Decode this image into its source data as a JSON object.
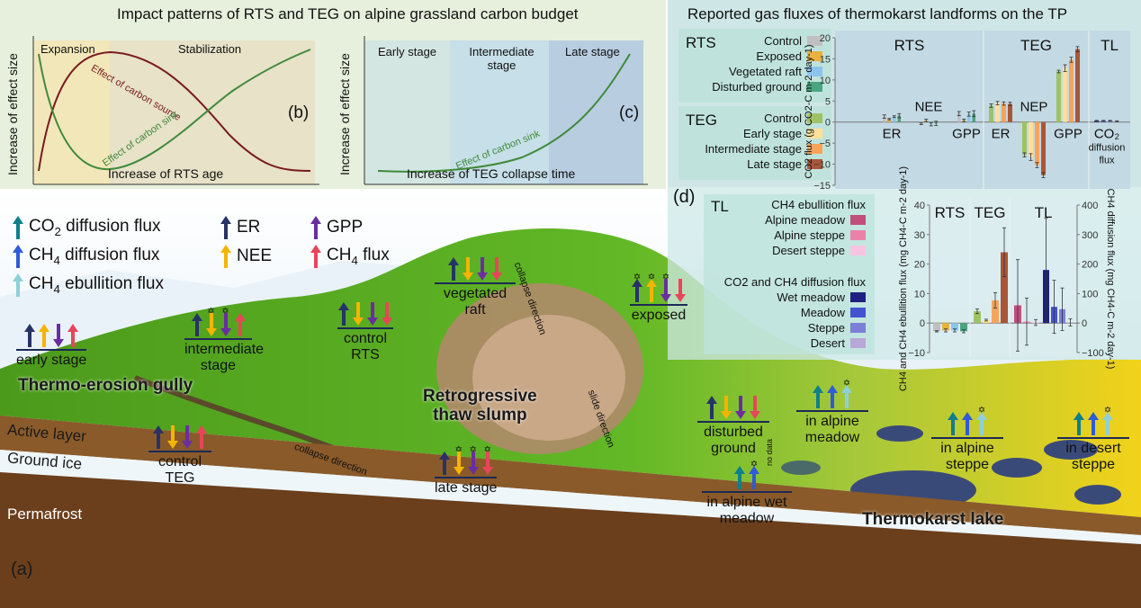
{
  "panel_bc": {
    "title": "Impact patterns of RTS and TEG on alpine grassland carbon budget",
    "b": {
      "label": "(b)",
      "ylabel": "Increase of effect size",
      "xlabel": "Increase of RTS age",
      "phase1": "Expansion",
      "phase2": "Stabilization",
      "curve_source": "Effect of carbon source",
      "curve_sink": "Effect of carbon sink",
      "colors": {
        "source": "#7a1a22",
        "sink": "#3f8a3a",
        "expansion": "#f2e7b8",
        "stabilization": "#e7e2c8"
      }
    },
    "c": {
      "label": "(c)",
      "ylabel": "Increase of effect size",
      "xlabel": "Increase of TEG collapse time",
      "stage1": "Early stage",
      "stage2": "Intermediate stage",
      "stage3": "Late stage",
      "curve_sink": "Effect of carbon sink"
    }
  },
  "legend": {
    "co2_diffusion": {
      "label_pre": "CO",
      "sub": "2",
      "label_post": " diffusion flux",
      "color": "#0e7f8c"
    },
    "ch4_diffusion": {
      "label_pre": "CH",
      "sub": "4",
      "label_post": " diffusion flux",
      "color": "#2f5bd6"
    },
    "ch4_ebullition": {
      "label_pre": "CH",
      "sub": "4",
      "label_post": " ebullition flux",
      "color": "#8fd0d8"
    },
    "er": {
      "label": "ER",
      "color": "#273366"
    },
    "nee": {
      "label": "NEE",
      "color": "#f5b400"
    },
    "gpp": {
      "label": "GPP",
      "color": "#6a2ea0"
    },
    "ch4_flux": {
      "label_pre": "CH",
      "sub": "4",
      "label_post": " flux",
      "color": "#e8455b"
    }
  },
  "panel_d": {
    "title": "Reported gas fluxes of thermokarst landforms on the TP",
    "label": "(d)",
    "legend_co2": {
      "rts_title": "RTS",
      "rts": [
        {
          "name": "Control",
          "color": "#c0c0c0"
        },
        {
          "name": "Exposed",
          "color": "#e8b040"
        },
        {
          "name": "Vegetated raft",
          "color": "#8ec4ea"
        },
        {
          "name": "Disturbed ground",
          "color": "#4aa57f"
        }
      ],
      "teg_title": "TEG",
      "teg": [
        {
          "name": "Control",
          "color": "#9fc266"
        },
        {
          "name": "Early stage",
          "color": "#fbe19a"
        },
        {
          "name": "Intermediate stage",
          "color": "#f7a45a"
        },
        {
          "name": "Late stage",
          "color": "#a8563a"
        }
      ]
    },
    "legend_ch4": {
      "tl_title": "TL",
      "ebullition_title": "CH4 ebullition flux",
      "ebullition": [
        {
          "name": "Alpine meadow",
          "color": "#c04f7c"
        },
        {
          "name": "Alpine steppe",
          "color": "#ea82a8"
        },
        {
          "name": "Desert steppe",
          "color": "#f7c4e2"
        }
      ],
      "diffusion_title": "CO2 and CH4 diffusion flux",
      "diffusion": [
        {
          "name": "Wet meadow",
          "color": "#1e1f80"
        },
        {
          "name": "Meadow",
          "color": "#4453d0"
        },
        {
          "name": "Steppe",
          "color": "#7b7fd6"
        },
        {
          "name": "Desert",
          "color": "#b8a8d8"
        }
      ]
    }
  },
  "chart_data": [
    {
      "type": "bar",
      "ylabel": "CO2 flux (g CO2-C m-2 day-1)",
      "ylim": [
        -15,
        20
      ],
      "yticks": [
        -15,
        -10,
        -5,
        0,
        5,
        10,
        15,
        20
      ],
      "sections": [
        "RTS",
        "TEG",
        "TL"
      ],
      "groups": [
        {
          "section": "RTS",
          "label": "ER",
          "label_pos": "below",
          "values": [
            1.3,
            0.7,
            1.3,
            1.5
          ],
          "errors": [
            0.4,
            0.15,
            0.2,
            0.5
          ],
          "colors": [
            "#c0c0c0",
            "#e8b040",
            "#8ec4ea",
            "#4aa57f"
          ]
        },
        {
          "section": "RTS",
          "label": "NEE",
          "label_pos": "above",
          "values": [
            -0.4,
            0.4,
            -0.5,
            -0.3
          ],
          "errors": [
            0.2,
            0.3,
            0.4,
            0.5
          ],
          "colors": [
            "#c0c0c0",
            "#e8b040",
            "#8ec4ea",
            "#4aa57f"
          ]
        },
        {
          "section": "RTS",
          "label": "GPP",
          "label_pos": "below",
          "values": [
            2.0,
            0.4,
            1.9,
            2.0
          ],
          "errors": [
            0.5,
            0.3,
            0.5,
            0.7
          ],
          "colors": [
            "#c0c0c0",
            "#e8b040",
            "#8ec4ea",
            "#4aa57f"
          ]
        },
        {
          "section": "TEG",
          "label": "ER",
          "label_pos": "below",
          "values": [
            3.9,
            4.5,
            4.4,
            4.3
          ],
          "errors": [
            0.4,
            0.4,
            0.4,
            0.4
          ],
          "colors": [
            "#9fc266",
            "#fbe19a",
            "#f7a45a",
            "#a8563a"
          ]
        },
        {
          "section": "TEG",
          "label": "NEP",
          "label_pos": "above",
          "values": [
            -7.8,
            -8.3,
            -10.2,
            -12.6
          ],
          "errors": [
            0.5,
            0.8,
            0.6,
            0.6
          ],
          "colors": [
            "#9fc266",
            "#fbe19a",
            "#f7a45a",
            "#a8563a"
          ]
        },
        {
          "section": "TEG",
          "label": "GPP",
          "label_pos": "below",
          "values": [
            12.0,
            12.8,
            14.8,
            17.3
          ],
          "errors": [
            0.3,
            0.8,
            0.6,
            0.6
          ],
          "colors": [
            "#9fc266",
            "#fbe19a",
            "#f7a45a",
            "#a8563a"
          ]
        },
        {
          "section": "TL",
          "label": "CO2 diffusion flux",
          "label_pos": "below",
          "values": [
            0.3,
            0.3,
            0.3,
            0.2
          ],
          "errors": [
            0.1,
            0.1,
            0.1,
            0.1
          ],
          "colors": [
            "#1e1f80",
            "#4453d0",
            "#7b7fd6",
            "#b8a8d8"
          ]
        }
      ]
    },
    {
      "type": "bar",
      "ylabel": "CH4 and CH4 ebullition flux (mg CH4-C m-2 day-1)",
      "y2label": "CH4 diffusion flux (mg CH4-C m-2 day-1)",
      "ylim": [
        -10,
        40
      ],
      "yticks": [
        -10,
        0,
        10,
        20,
        30,
        40
      ],
      "y2lim": [
        -100,
        400
      ],
      "y2ticks": [
        -100,
        0,
        100,
        200,
        300,
        400
      ],
      "sections": [
        "RTS",
        "TEG",
        "TL"
      ],
      "groups": [
        {
          "section": "RTS",
          "axis": "left",
          "values": [
            -2.8,
            -2.5,
            -2.5,
            -2.8
          ],
          "errors": [
            0.2,
            0.5,
            0.5,
            0.5
          ],
          "colors": [
            "#c0c0c0",
            "#e8b040",
            "#8ec4ea",
            "#4aa57f"
          ]
        },
        {
          "section": "TEG",
          "axis": "left",
          "values": [
            4.0,
            1.0,
            7.7,
            24.0
          ],
          "errors": [
            0.8,
            0.3,
            2.6,
            8.3
          ],
          "colors": [
            "#9fc266",
            "#fbe19a",
            "#f7a45a",
            "#a8563a"
          ]
        },
        {
          "section": "TL",
          "axis": "left",
          "values": [
            6.0,
            0.5,
            0.2
          ],
          "errors": [
            15.5,
            8.0,
            1.0
          ],
          "colors": [
            "#c04f7c",
            "#ea82a8",
            "#f7c4e2"
          ]
        },
        {
          "section": "TL",
          "axis": "right",
          "values": [
            180,
            55,
            47,
            2
          ],
          "errors": [
            175,
            90,
            72,
            12
          ],
          "colors": [
            "#1e1f80",
            "#4453d0",
            "#7b7fd6",
            "#b8a8d8"
          ]
        }
      ]
    }
  ],
  "landscape": {
    "label": "(a)",
    "gully": "Thermo-erosion gully",
    "slump_1": "Retrogressive",
    "slump_2": "thaw slump",
    "lake": "Thermokarst lake",
    "active_layer": "Active layer",
    "ground_ice": "Ground ice",
    "permafrost": "Permafrost",
    "collapse_dir_1": "collapse direction",
    "collapse_dir_2": "collapse direction",
    "slide_dir": "slide direction",
    "no_data": "no data"
  },
  "sites": [
    {
      "label": "early stage",
      "arrows": [
        [
          "er",
          "up",
          0
        ],
        [
          "nee",
          "up",
          0
        ],
        [
          "gpp",
          "down",
          0
        ],
        [
          "ch4_flux",
          "up",
          0
        ]
      ]
    },
    {
      "label": "intermediate stage",
      "arrows": [
        [
          "er",
          "up",
          0
        ],
        [
          "nee",
          "down",
          1
        ],
        [
          "gpp",
          "down",
          1
        ],
        [
          "ch4_flux",
          "up",
          0
        ]
      ]
    },
    {
      "label": "control TEG",
      "arrows": [
        [
          "er",
          "up",
          0
        ],
        [
          "nee",
          "down",
          0
        ],
        [
          "gpp",
          "down",
          0
        ],
        [
          "ch4_flux",
          "up",
          0
        ]
      ]
    },
    {
      "label": "late stage",
      "arrows": [
        [
          "er",
          "up",
          0
        ],
        [
          "nee",
          "down",
          1
        ],
        [
          "gpp",
          "down",
          1
        ],
        [
          "ch4_flux",
          "down",
          1
        ]
      ]
    },
    {
      "label": "control RTS",
      "arrows": [
        [
          "er",
          "up",
          0
        ],
        [
          "nee",
          "down",
          0
        ],
        [
          "gpp",
          "down",
          0
        ],
        [
          "ch4_flux",
          "down",
          0
        ]
      ]
    },
    {
      "label": "vegetated raft",
      "arrows": [
        [
          "er",
          "up",
          0
        ],
        [
          "nee",
          "down",
          0
        ],
        [
          "gpp",
          "down",
          0
        ],
        [
          "ch4_flux",
          "down",
          0
        ]
      ]
    },
    {
      "label": "exposed",
      "arrows": [
        [
          "er",
          "up",
          1
        ],
        [
          "nee",
          "up",
          1
        ],
        [
          "gpp",
          "down",
          1
        ],
        [
          "ch4_flux",
          "down",
          0
        ]
      ]
    },
    {
      "label": "disturbed ground",
      "arrows": [
        [
          "er",
          "up",
          0
        ],
        [
          "nee",
          "down",
          0
        ],
        [
          "gpp",
          "down",
          0
        ],
        [
          "ch4_flux",
          "down",
          0
        ]
      ]
    },
    {
      "label": "in alpine wet meadow",
      "arrows": [
        [
          "co2_diffusion",
          "up",
          0
        ],
        [
          "ch4_diffusion",
          "up",
          1
        ]
      ]
    },
    {
      "label": "in alpine meadow",
      "arrows": [
        [
          "co2_diffusion",
          "up",
          0
        ],
        [
          "ch4_diffusion",
          "up",
          0
        ],
        [
          "ch4_ebullition",
          "up",
          1
        ]
      ]
    },
    {
      "label": "in alpine steppe",
      "arrows": [
        [
          "co2_diffusion",
          "up",
          0
        ],
        [
          "ch4_diffusion",
          "up",
          0
        ],
        [
          "ch4_ebullition",
          "up",
          1
        ]
      ]
    },
    {
      "label": "in desert steppe",
      "arrows": [
        [
          "co2_diffusion",
          "up",
          0
        ],
        [
          "ch4_diffusion",
          "up",
          0
        ],
        [
          "ch4_ebullition",
          "up",
          1
        ]
      ]
    }
  ]
}
